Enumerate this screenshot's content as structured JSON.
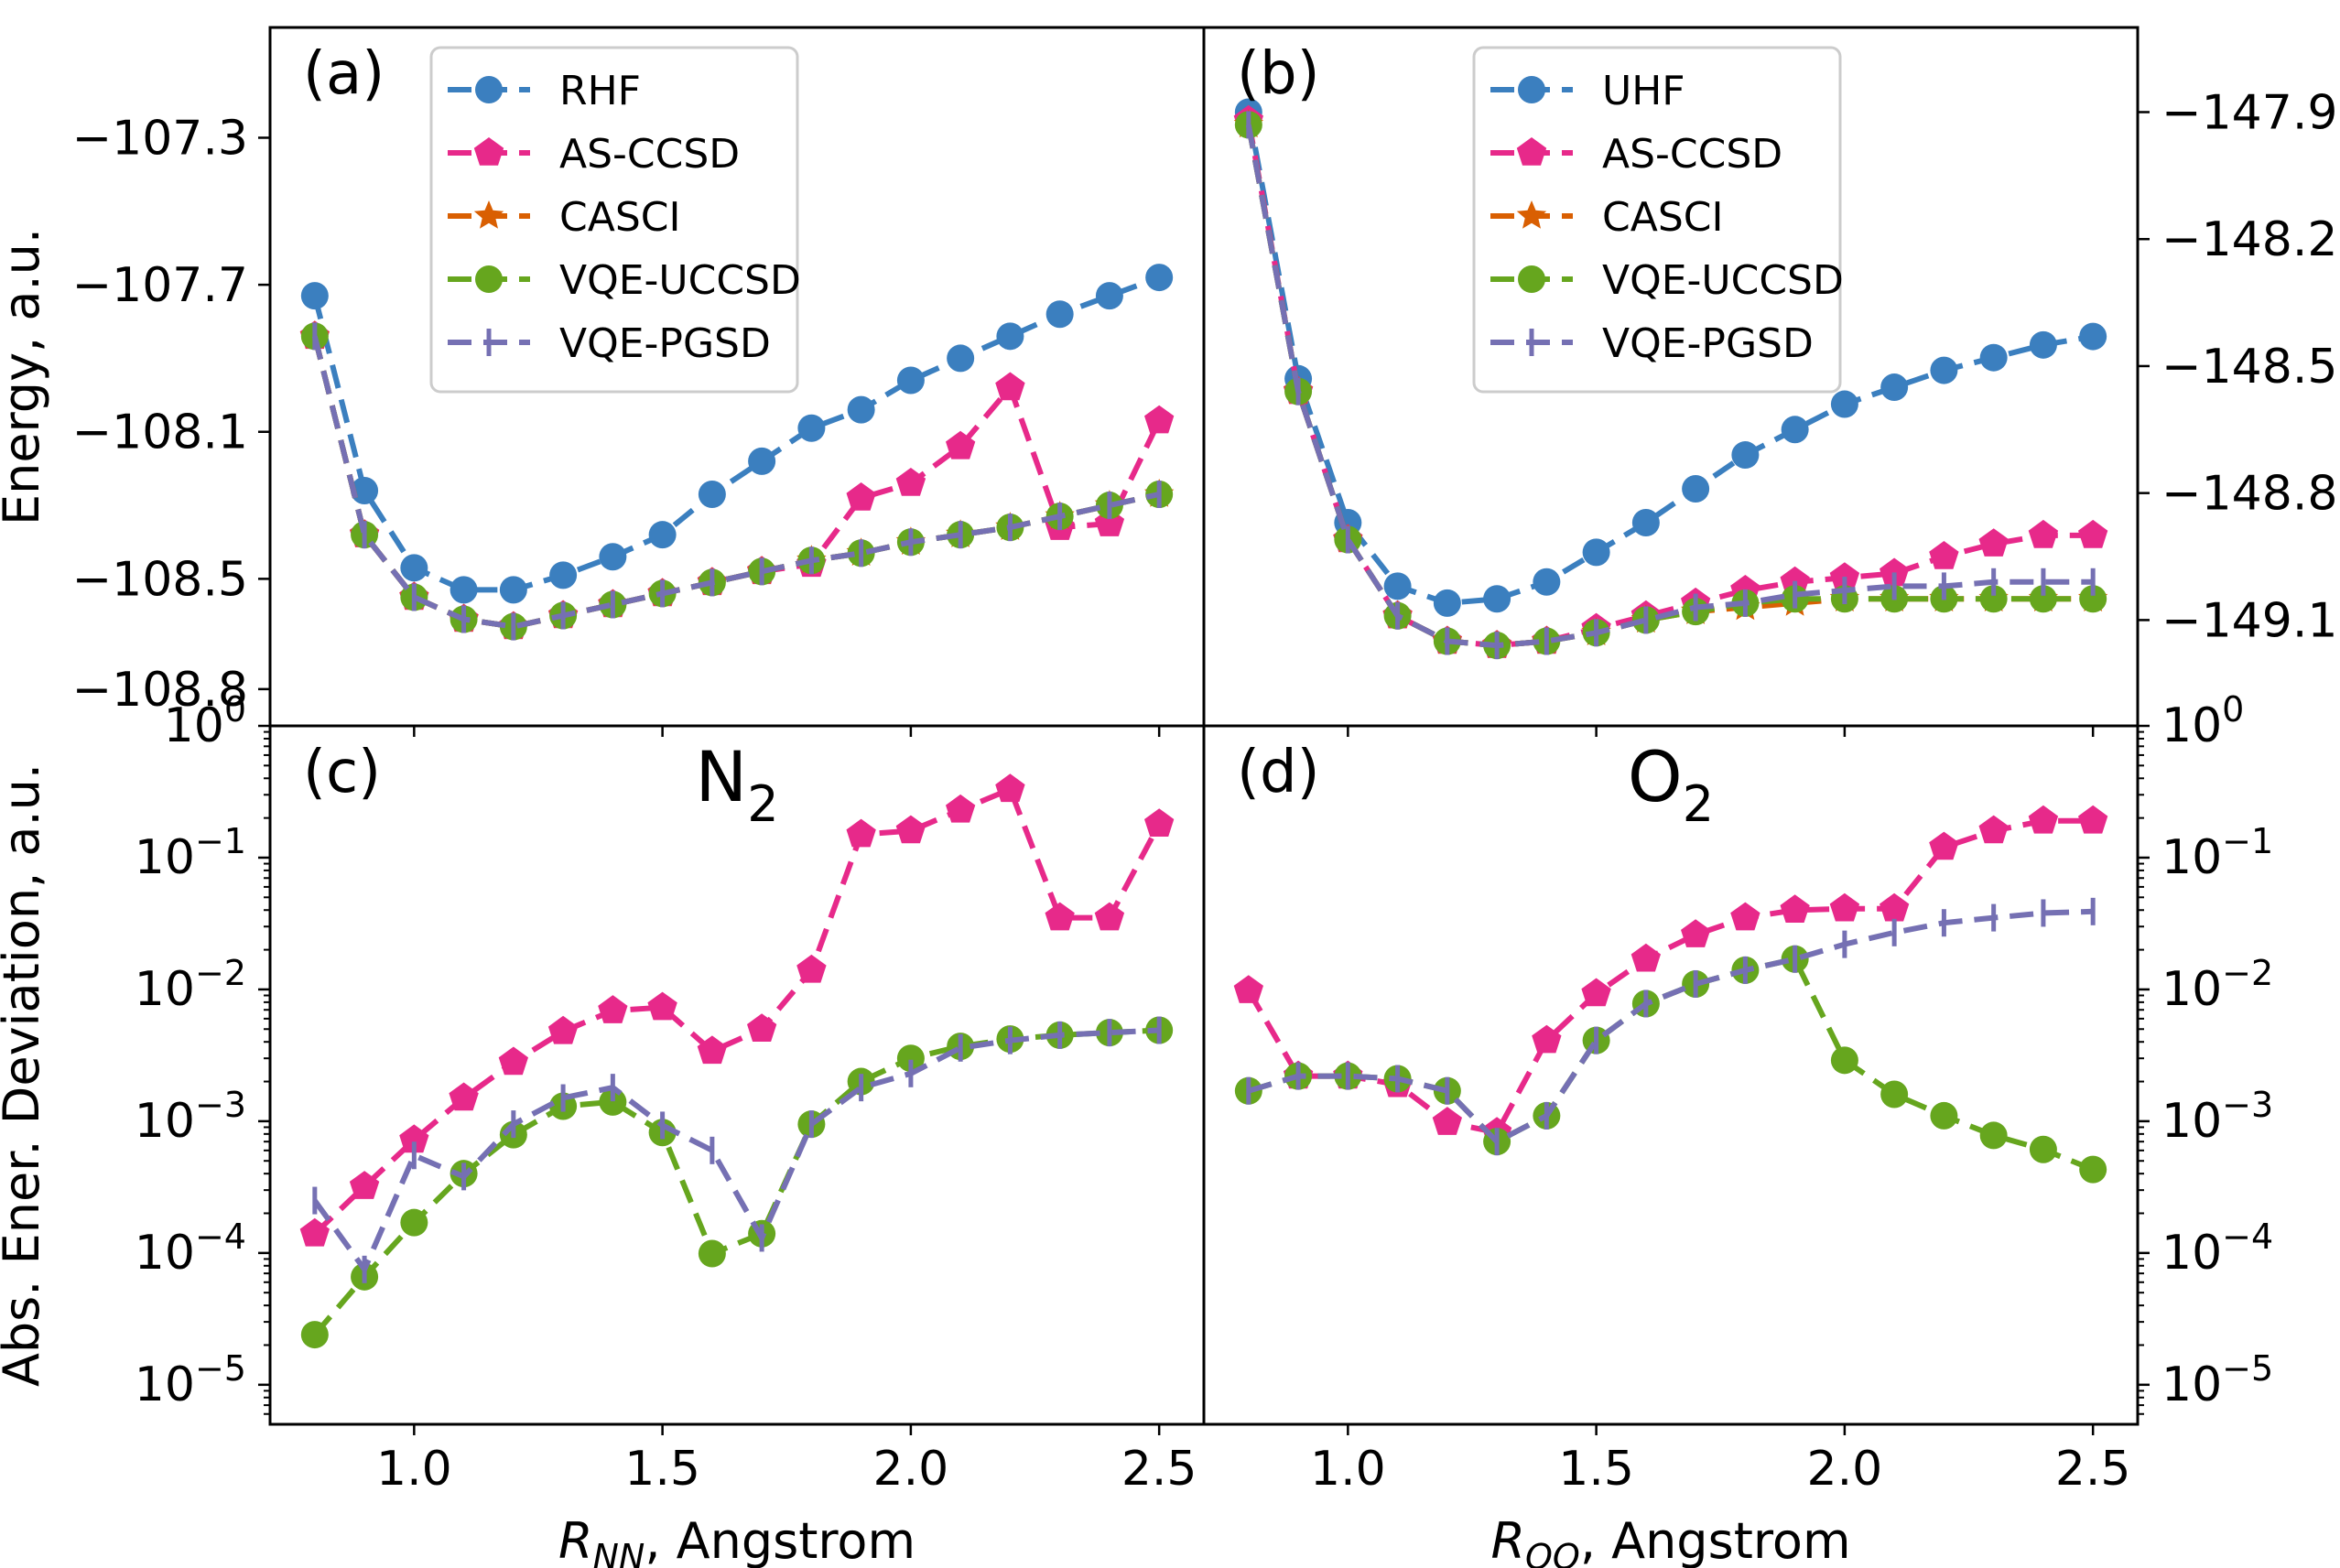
{
  "colors": {
    "uhf": "#3b7fbf",
    "ccsd": "#e7298a",
    "casci": "#d95f02",
    "uccsd": "#66a61e",
    "pgsd": "#7570b3"
  },
  "chart_data": [
    {
      "id": "a",
      "panel_label": "(a)",
      "type": "line",
      "ylabel": "Energy, a.u.",
      "yscale": "linear",
      "yaxis_side": "left",
      "ylim": [
        -108.9,
        -107.0
      ],
      "yticks": [
        -107.3,
        -107.7,
        -108.1,
        -108.5,
        -108.8
      ],
      "ytick_labels": [
        "−107.3",
        "−107.7",
        "−108.1",
        "−108.5",
        "−108.8"
      ],
      "xlim": [
        0.71,
        2.59
      ],
      "xticks": [
        1.0,
        1.5,
        2.0,
        2.5
      ],
      "xtick_labels": [],
      "x": [
        0.8,
        0.9,
        1.0,
        1.1,
        1.2,
        1.3,
        1.4,
        1.5,
        1.6,
        1.7,
        1.8,
        1.9,
        2.0,
        2.1,
        2.2,
        2.3,
        2.4,
        2.5
      ],
      "legend": "top",
      "legend_offset": "left",
      "series": [
        {
          "name": "RHF",
          "color_key": "uhf",
          "marker": "circle",
          "values": [
            -107.73,
            -108.26,
            -108.47,
            -108.53,
            -108.53,
            -108.49,
            -108.44,
            -108.38,
            -108.27,
            -108.18,
            -108.09,
            -108.04,
            -107.96,
            -107.9,
            -107.84,
            -107.78,
            -107.73,
            -107.68
          ]
        },
        {
          "name": "AS-CCSD",
          "color_key": "ccsd",
          "marker": "pentagon",
          "values": [
            -107.84,
            -108.38,
            -108.55,
            -108.61,
            -108.63,
            -108.6,
            -108.57,
            -108.54,
            -108.51,
            -108.48,
            -108.46,
            -108.28,
            -108.24,
            -108.14,
            -107.98,
            -108.36,
            -108.35,
            -108.07
          ]
        },
        {
          "name": "CASCI",
          "color_key": "casci",
          "marker": "star",
          "values": [
            -107.84,
            -108.38,
            -108.55,
            -108.61,
            -108.63,
            -108.6,
            -108.57,
            -108.54,
            -108.51,
            -108.48,
            -108.45,
            -108.43,
            -108.4,
            -108.38,
            -108.36,
            -108.33,
            -108.3,
            -108.27
          ]
        },
        {
          "name": "VQE-UCCSD",
          "color_key": "uccsd",
          "marker": "circle",
          "values": [
            -107.84,
            -108.38,
            -108.55,
            -108.61,
            -108.63,
            -108.6,
            -108.57,
            -108.54,
            -108.51,
            -108.48,
            -108.45,
            -108.43,
            -108.4,
            -108.38,
            -108.36,
            -108.33,
            -108.3,
            -108.27
          ]
        },
        {
          "name": "VQE-PGSD",
          "color_key": "pgsd",
          "marker": "tick",
          "values": [
            -107.84,
            -108.38,
            -108.55,
            -108.61,
            -108.63,
            -108.6,
            -108.57,
            -108.54,
            -108.51,
            -108.48,
            -108.45,
            -108.43,
            -108.4,
            -108.38,
            -108.36,
            -108.33,
            -108.3,
            -108.27
          ]
        }
      ]
    },
    {
      "id": "b",
      "panel_label": "(b)",
      "type": "line",
      "ylabel": "",
      "yscale": "linear",
      "yaxis_side": "right",
      "ylim": [
        -149.35,
        -147.7
      ],
      "yticks": [
        -147.9,
        -148.2,
        -148.5,
        -148.8,
        -149.1
      ],
      "ytick_labels": [
        "−147.9",
        "−148.2",
        "−148.5",
        "−148.8",
        "−149.1"
      ],
      "xlim": [
        0.71,
        2.59
      ],
      "xticks": [
        1.0,
        1.5,
        2.0,
        2.5
      ],
      "xtick_labels": [],
      "x": [
        0.8,
        0.9,
        1.0,
        1.1,
        1.2,
        1.3,
        1.4,
        1.5,
        1.6,
        1.7,
        1.8,
        1.9,
        2.0,
        2.1,
        2.2,
        2.3,
        2.4,
        2.5
      ],
      "legend": "top",
      "legend_offset": "right",
      "series": [
        {
          "name": "UHF",
          "color_key": "uhf",
          "marker": "circle",
          "values": [
            -147.9,
            -148.53,
            -148.87,
            -149.02,
            -149.06,
            -149.05,
            -149.01,
            -148.94,
            -148.87,
            -148.79,
            -148.71,
            -148.65,
            -148.59,
            -148.55,
            -148.51,
            -148.48,
            -148.45,
            -148.43
          ]
        },
        {
          "name": "AS-CCSD",
          "color_key": "ccsd",
          "marker": "pentagon",
          "values": [
            -147.92,
            -148.56,
            -148.91,
            -149.09,
            -149.15,
            -149.16,
            -149.15,
            -149.12,
            -149.09,
            -149.06,
            -149.03,
            -149.01,
            -149.0,
            -148.99,
            -148.95,
            -148.92,
            -148.9,
            -148.9
          ]
        },
        {
          "name": "CASCI",
          "color_key": "casci",
          "marker": "star",
          "values": [
            -147.93,
            -148.56,
            -148.91,
            -149.09,
            -149.15,
            -149.16,
            -149.15,
            -149.13,
            -149.1,
            -149.08,
            -149.07,
            -149.06,
            -149.05,
            -149.05,
            -149.05,
            -149.05,
            -149.05,
            -149.05
          ]
        },
        {
          "name": "VQE-UCCSD",
          "color_key": "uccsd",
          "marker": "circle",
          "values": [
            -147.93,
            -148.56,
            -148.91,
            -149.09,
            -149.15,
            -149.16,
            -149.15,
            -149.13,
            -149.1,
            -149.08,
            -149.06,
            -149.05,
            -149.05,
            -149.05,
            -149.05,
            -149.05,
            -149.05,
            -149.05
          ]
        },
        {
          "name": "VQE-PGSD",
          "color_key": "pgsd",
          "marker": "tick",
          "values": [
            -147.93,
            -148.56,
            -148.91,
            -149.09,
            -149.15,
            -149.16,
            -149.15,
            -149.13,
            -149.1,
            -149.07,
            -149.06,
            -149.04,
            -149.03,
            -149.02,
            -149.02,
            -149.01,
            -149.01,
            -149.01
          ]
        }
      ]
    },
    {
      "id": "c",
      "panel_label": "(c)",
      "type": "line",
      "title_main": "N",
      "title_sub": "2",
      "ylabel": "Abs. Ener. Deviation, a.u.",
      "yscale": "log",
      "yaxis_side": "left",
      "ylim_exp": [
        -5.3,
        0.0
      ],
      "ytick_exps": [
        0,
        -1,
        -2,
        -3,
        -4,
        -5
      ],
      "xlim": [
        0.71,
        2.59
      ],
      "xticks": [
        1.0,
        1.5,
        2.0,
        2.5
      ],
      "xtick_labels": [
        "1.0",
        "1.5",
        "2.0",
        "2.5"
      ],
      "xlabel_main": "R",
      "xlabel_sub": "NN",
      "xlabel_rest": ", Angstrom",
      "x": [
        0.8,
        0.9,
        1.0,
        1.1,
        1.2,
        1.3,
        1.4,
        1.5,
        1.6,
        1.7,
        1.8,
        1.9,
        2.0,
        2.1,
        2.2,
        2.3,
        2.4,
        2.5
      ],
      "series": [
        {
          "name": "AS-CCSD",
          "color_key": "ccsd",
          "marker": "pentagon",
          "values": [
            0.00014,
            0.00032,
            0.00072,
            0.0015,
            0.0028,
            0.0048,
            0.0069,
            0.0073,
            0.0034,
            0.005,
            0.014,
            0.15,
            0.16,
            0.23,
            0.33,
            0.035,
            0.035,
            0.18
          ]
        },
        {
          "name": "VQE-UCCSD",
          "color_key": "uccsd",
          "marker": "circle",
          "values": [
            2.4e-05,
            6.6e-05,
            0.00017,
            0.0004,
            0.00079,
            0.0013,
            0.0014,
            0.00082,
            9.9e-05,
            0.00014,
            0.00095,
            0.002,
            0.003,
            0.0037,
            0.0042,
            0.0045,
            0.0047,
            0.0049
          ]
        },
        {
          "name": "VQE-PGSD",
          "color_key": "pgsd",
          "marker": "tick",
          "values": [
            0.00025,
            7.5e-05,
            0.00055,
            0.00038,
            0.00095,
            0.0015,
            0.0018,
            0.00093,
            0.0006,
            0.00013,
            0.00095,
            0.0018,
            0.0023,
            0.0036,
            0.0041,
            0.0045,
            0.0047,
            0.0049
          ]
        }
      ]
    },
    {
      "id": "d",
      "panel_label": "(d)",
      "type": "line",
      "title_main": "O",
      "title_sub": "2",
      "ylabel": "",
      "yscale": "log",
      "yaxis_side": "right",
      "ylim_exp": [
        -5.3,
        0.0
      ],
      "ytick_exps": [
        0,
        -1,
        -2,
        -3,
        -4,
        -5
      ],
      "xlim": [
        0.71,
        2.59
      ],
      "xticks": [
        1.0,
        1.5,
        2.0,
        2.5
      ],
      "xtick_labels": [
        "1.0",
        "1.5",
        "2.0",
        "2.5"
      ],
      "xlabel_main": "R",
      "xlabel_sub": "OO",
      "xlabel_rest": ", Angstrom",
      "x": [
        0.8,
        0.9,
        1.0,
        1.1,
        1.2,
        1.3,
        1.4,
        1.5,
        1.6,
        1.7,
        1.8,
        1.9,
        2.0,
        2.1,
        2.2,
        2.3,
        2.4,
        2.5
      ],
      "series": [
        {
          "name": "AS-CCSD",
          "color_key": "ccsd",
          "marker": "pentagon",
          "values": [
            0.0098,
            0.0022,
            0.0022,
            0.0019,
            0.00098,
            0.00082,
            0.0041,
            0.0093,
            0.017,
            0.026,
            0.035,
            0.04,
            0.041,
            0.041,
            0.12,
            0.16,
            0.19,
            0.19
          ]
        },
        {
          "name": "VQE-UCCSD",
          "color_key": "uccsd",
          "marker": "circle",
          "values": [
            0.0017,
            0.0022,
            0.0022,
            0.0021,
            0.0017,
            0.0007,
            0.0011,
            0.0041,
            0.0078,
            0.011,
            0.014,
            0.017,
            0.0029,
            0.0016,
            0.0011,
            0.00078,
            0.00061,
            0.00043
          ]
        },
        {
          "name": "VQE-PGSD",
          "color_key": "pgsd",
          "marker": "tick",
          "values": [
            0.0017,
            0.0022,
            0.0022,
            0.0021,
            0.0017,
            0.0007,
            0.0011,
            0.0041,
            0.0078,
            0.011,
            0.014,
            0.017,
            0.022,
            0.027,
            0.032,
            0.035,
            0.038,
            0.039
          ]
        }
      ]
    }
  ]
}
